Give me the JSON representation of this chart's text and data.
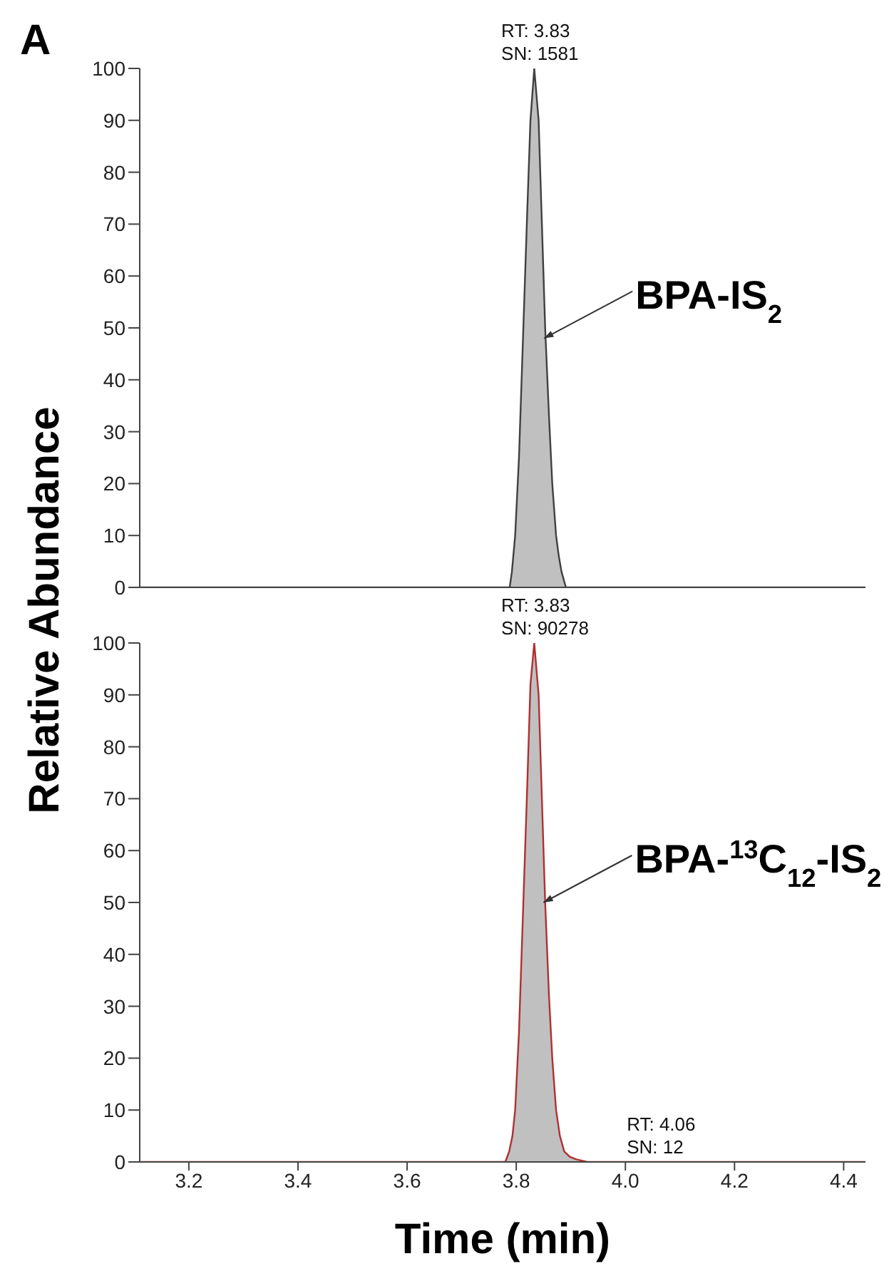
{
  "chart_data": [
    {
      "type": "area",
      "title": "A",
      "ylabel": "Relative Abundance",
      "xlim": [
        3.11,
        4.44
      ],
      "ylim": [
        0,
        100
      ],
      "yticks": [
        0,
        10,
        20,
        30,
        40,
        50,
        60,
        70,
        80,
        90,
        100
      ],
      "tick_labels": "y",
      "series": [
        {
          "color": "#404040",
          "x": [
            3.11,
            3.788,
            3.792,
            3.798,
            3.805,
            3.813,
            3.82,
            3.826,
            3.833,
            3.841,
            3.847,
            3.853,
            3.86,
            3.866,
            3.873,
            3.878,
            3.883,
            3.891,
            4.44
          ],
          "values": [
            0,
            0,
            3,
            10,
            25,
            50,
            72,
            90,
            100,
            90,
            70,
            50,
            33,
            20,
            10,
            6,
            3,
            0,
            0
          ]
        }
      ],
      "annotations": [
        {
          "text": "RT: 3.83\nSN: 1581",
          "x": 3.83,
          "y": 100
        },
        {
          "text": "BPA-IS$_{2}$",
          "x": 3.851,
          "y": 48
        }
      ]
    },
    {
      "type": "area",
      "xlabel": "Time (min)",
      "xlim": [
        3.11,
        4.44
      ],
      "ylim": [
        0,
        100
      ],
      "yticks": [
        0,
        10,
        20,
        30,
        40,
        50,
        60,
        70,
        80,
        90,
        100
      ],
      "xticks": [
        3.2,
        3.4,
        3.6,
        3.8,
        {
          "value": 4,
          "label": "4.0"
        },
        4.2,
        4.4
      ],
      "series": [
        {
          "color": "#b03030",
          "x": [
            3.11,
            3.78,
            3.787,
            3.793,
            3.798,
            3.805,
            3.813,
            3.82,
            3.826,
            3.833,
            3.841,
            3.847,
            3.853,
            3.86,
            3.866,
            3.873,
            3.88,
            3.888,
            3.898,
            3.91,
            3.93,
            4.44
          ],
          "values": [
            0,
            0,
            2,
            5,
            10,
            25,
            50,
            72,
            92,
            100,
            90,
            70,
            50,
            32,
            20,
            10,
            5,
            2,
            1,
            0.5,
            0,
            0
          ]
        }
      ],
      "annotations": [
        {
          "text": "RT: 3.83\nSN: 90278",
          "x": 3.83,
          "y": 100
        },
        {
          "text": "RT: 4.06\nSN: 12",
          "x": 4.06,
          "y": 0
        },
        {
          "text": "BPA-$^{13}$C$_{12}$-IS$_{2}$",
          "x": 3.85,
          "y": 50
        }
      ]
    }
  ]
}
